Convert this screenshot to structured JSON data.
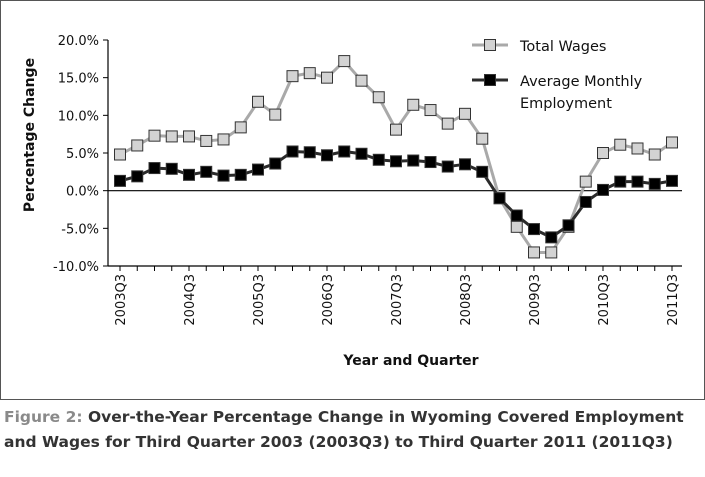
{
  "chart_data": {
    "type": "line",
    "ylabel": "Percentage Change",
    "xlabel": "Year and Quarter",
    "ylim": [
      -10,
      20
    ],
    "yticks": [
      20,
      15,
      10,
      5,
      0,
      -5,
      -10
    ],
    "ytick_labels": [
      "20.0%",
      "15.0%",
      "10.0%",
      "5.0%",
      "0.0%",
      "-5.0%",
      "-10.0%"
    ],
    "x": [
      "2003Q3",
      "2003Q4",
      "2004Q1",
      "2004Q2",
      "2004Q3",
      "2004Q4",
      "2005Q1",
      "2005Q2",
      "2005Q3",
      "2005Q4",
      "2006Q1",
      "2006Q2",
      "2006Q3",
      "2006Q4",
      "2007Q1",
      "2007Q2",
      "2007Q3",
      "2007Q4",
      "2008Q1",
      "2008Q2",
      "2008Q3",
      "2008Q4",
      "2009Q1",
      "2009Q2",
      "2009Q3",
      "2009Q4",
      "2010Q1",
      "2010Q2",
      "2010Q3",
      "2010Q4",
      "2011Q1",
      "2011Q2",
      "2011Q3"
    ],
    "xtick_labels": [
      "2003Q3",
      "2004Q3",
      "2005Q3",
      "2006Q3",
      "2007Q3",
      "2008Q3",
      "2009Q3",
      "2010Q3",
      "2011Q3"
    ],
    "series": [
      {
        "name": "Total Wages",
        "color": "#a9a9a9",
        "marker_fill": "#d3d3d3",
        "values": [
          4.8,
          6.0,
          7.3,
          7.2,
          7.2,
          6.6,
          6.8,
          8.4,
          11.8,
          10.1,
          15.2,
          15.6,
          15.0,
          17.2,
          14.6,
          12.4,
          8.1,
          11.4,
          10.7,
          8.9,
          10.2,
          6.9,
          -1.0,
          -4.8,
          -8.2,
          -8.2,
          -4.8,
          1.2,
          5.0,
          6.1,
          5.6,
          4.8,
          6.4
        ]
      },
      {
        "name": "Average Monthly Employment",
        "color": "#2b2b2b",
        "marker_fill": "#000000",
        "values": [
          1.3,
          1.9,
          3.0,
          2.9,
          2.1,
          2.5,
          2.0,
          2.1,
          2.8,
          3.6,
          5.2,
          5.1,
          4.7,
          5.2,
          4.9,
          4.1,
          3.9,
          4.0,
          3.8,
          3.2,
          3.5,
          2.5,
          -1.0,
          -3.3,
          -5.1,
          -6.2,
          -4.6,
          -1.5,
          0.1,
          1.2,
          1.2,
          0.9,
          1.3
        ]
      }
    ],
    "legend_position": "top-right"
  },
  "caption": {
    "label": "Figure 2:",
    "line1": "Over-the-Year Percentage Change in Wyoming Covered Employment",
    "line2": "and Wages for Third Quarter 2003 (2003Q3) to Third Quarter 2011 (2011Q3)"
  }
}
